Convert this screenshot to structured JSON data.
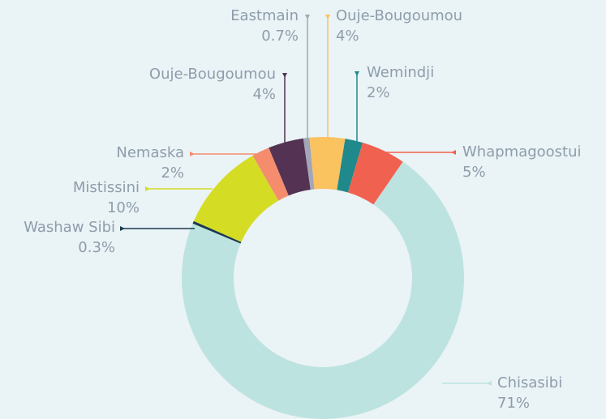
{
  "chart_data": {
    "type": "donut",
    "categories": [
      "Eastmain",
      "Ouje-Bougoumou",
      "Wemindji",
      "Whapmagoostui",
      "Chisasibi",
      "Washaw Sibi",
      "Mistissini",
      "Nemaska",
      "Ouje-Bougoumou"
    ],
    "values": [
      0.7,
      4,
      2,
      5,
      71,
      0.3,
      10,
      2,
      4
    ],
    "value_labels": [
      "0.7%",
      "4%",
      "2%",
      "5%",
      "71%",
      "0.3%",
      "10%",
      "2%",
      "4%"
    ],
    "colors": [
      "#a3a6b6",
      "#fbc260",
      "#20898b",
      "#f1614f",
      "#bde3e0",
      "#1b3a4e",
      "#d5dc24",
      "#f58c6e",
      "#533253"
    ]
  }
}
